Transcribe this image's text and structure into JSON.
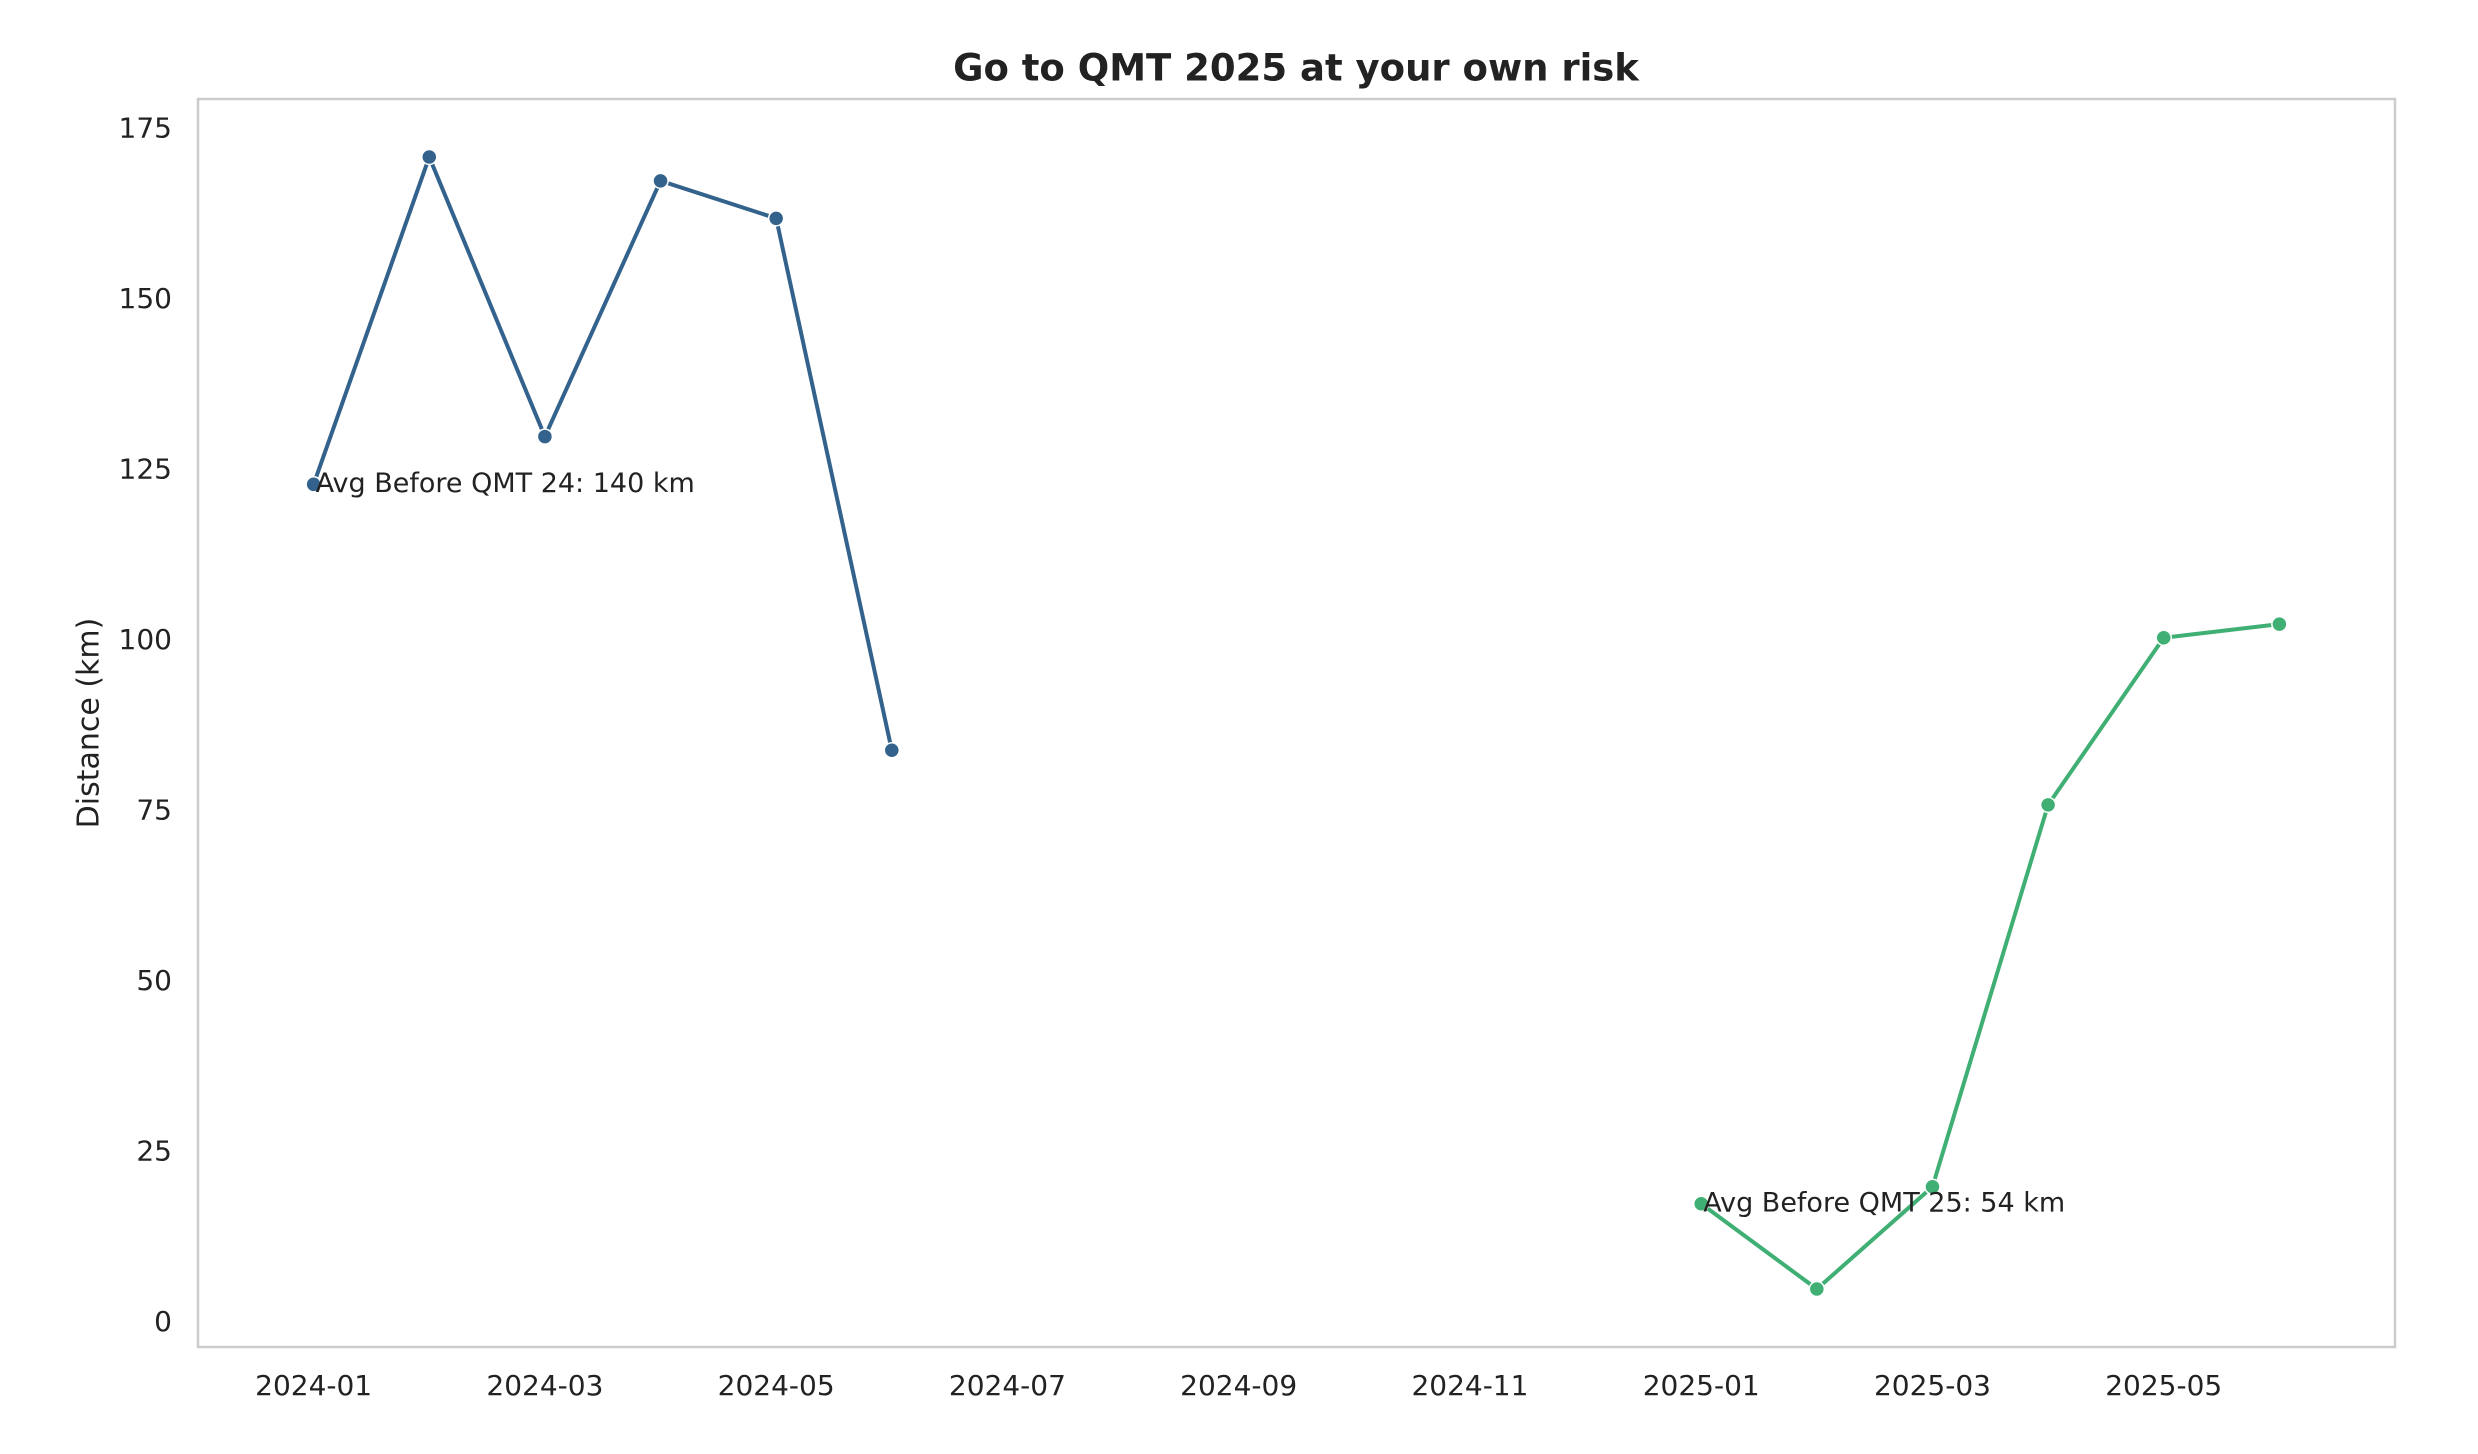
{
  "chart_data": {
    "type": "line",
    "title": "Go to QMT 2025 at your own risk",
    "y_label": "Distance (km)",
    "x": [
      "2024-01",
      "2024-02",
      "2024-03",
      "2024-04",
      "2024-05",
      "2024-06",
      "2025-01",
      "2025-02",
      "2025-03",
      "2025-04",
      "2025-05",
      "2025-06"
    ],
    "series": [
      {
        "color": "#33628c",
        "values": [
          123,
          171,
          130,
          167.5,
          162,
          84,
          null,
          null,
          null,
          null,
          null,
          null
        ]
      },
      {
        "color": "#3faf74",
        "values": [
          null,
          null,
          null,
          null,
          null,
          null,
          17.5,
          5,
          20,
          76,
          100.5,
          102.5
        ]
      }
    ],
    "annotations": [
      "Avg Before QMT 24: 140 km",
      "Avg Before QMT 25: 54 km"
    ],
    "xlim": [
      "2023-12",
      "2025-07"
    ],
    "xticks": [
      "2024-01",
      "2024-03",
      "2024-05",
      "2024-07",
      "2024-09",
      "2024-11",
      "2025-01",
      "2025-03",
      "2025-05"
    ],
    "ylim": [
      -3.5,
      179.5
    ],
    "yticks": [
      0,
      25,
      50,
      75,
      100,
      125,
      150,
      175
    ],
    "grid": false
  }
}
